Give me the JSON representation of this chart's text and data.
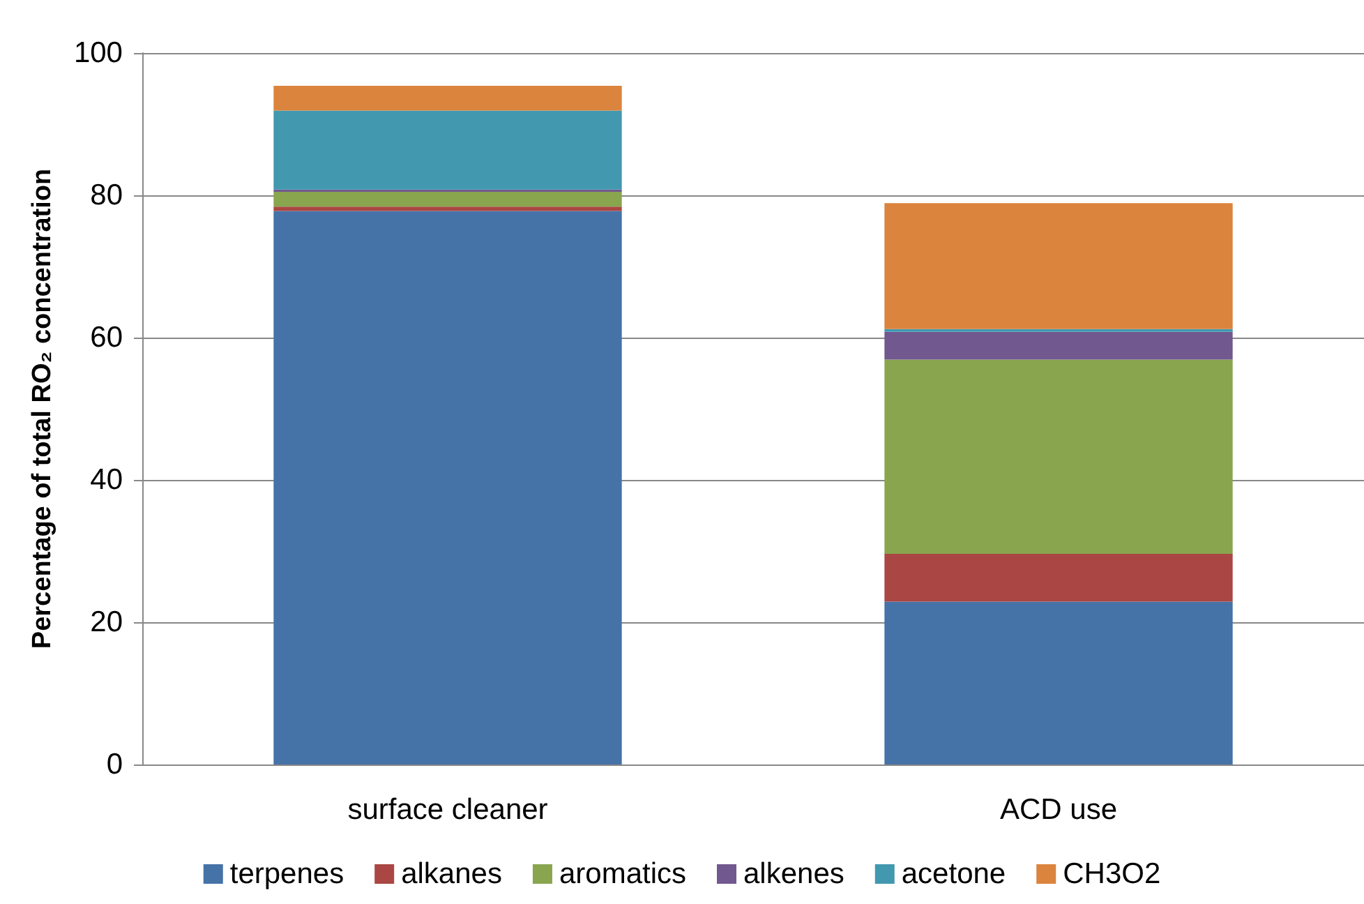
{
  "chart_data": {
    "type": "bar",
    "stacked": true,
    "ylabel": "Percentage of total RO₂ concentration",
    "categories": [
      "surface cleaner",
      "ACD use"
    ],
    "series": [
      {
        "name": "terpenes",
        "color": "#4572a7",
        "values": [
          77.8,
          22.9
        ]
      },
      {
        "name": "alkanes",
        "color": "#aa4643",
        "values": [
          0.6,
          6.7
        ]
      },
      {
        "name": "aromatics",
        "color": "#89a54e",
        "values": [
          2.1,
          27.3
        ]
      },
      {
        "name": "alkenes",
        "color": "#71588f",
        "values": [
          0.3,
          3.9
        ]
      },
      {
        "name": "acetone",
        "color": "#4198af",
        "values": [
          11.1,
          0.4
        ]
      },
      {
        "name": "CH3O2",
        "color": "#db843d",
        "values": [
          3.5,
          17.7
        ]
      }
    ],
    "ylim": [
      0,
      100
    ],
    "yticks": [
      0,
      20,
      40,
      60,
      80,
      100
    ],
    "grid": "y",
    "legend": "bottom"
  }
}
